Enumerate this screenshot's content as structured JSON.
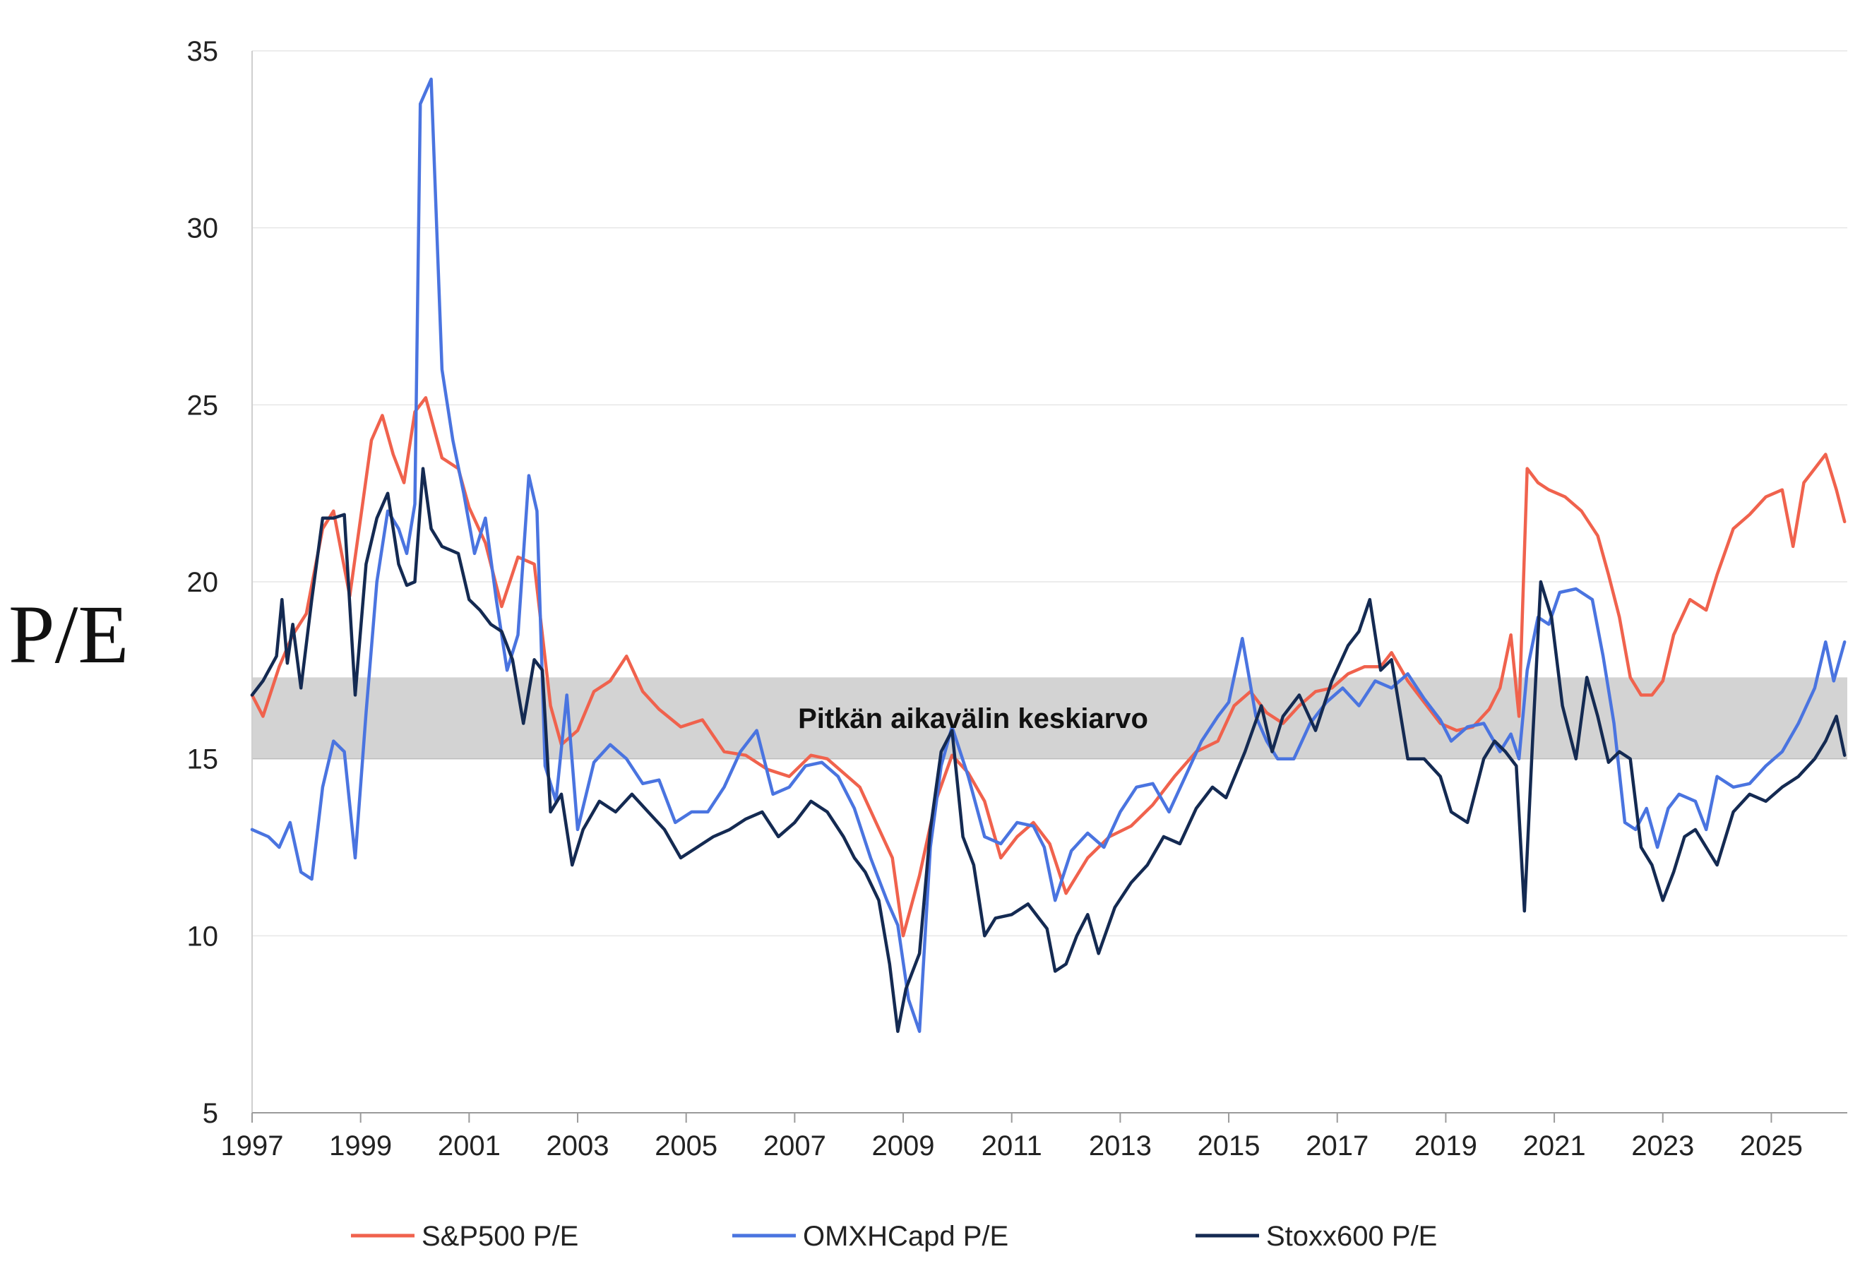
{
  "chart_data": {
    "type": "line",
    "title": "",
    "ylabel": "P/E",
    "xlabel": "",
    "xlim": [
      1997.0,
      2026.4
    ],
    "ylim": [
      5,
      35
    ],
    "y_ticks": [
      5,
      10,
      15,
      20,
      25,
      30,
      35
    ],
    "x_ticks": [
      1997,
      1999,
      2001,
      2003,
      2005,
      2007,
      2009,
      2011,
      2013,
      2015,
      2017,
      2019,
      2021,
      2023,
      2025
    ],
    "x_tick_labels": [
      "1997",
      "1999",
      "2001",
      "2003",
      "2005",
      "2007",
      "2009",
      "2011",
      "2013",
      "2015",
      "2017",
      "2019",
      "2021",
      "2023",
      "2025"
    ],
    "grid": "horizontal",
    "legend_position": "bottom",
    "band": {
      "label": "Pitkän aikavälin keskiarvo",
      "y_from": 15.0,
      "y_to": 17.3,
      "color": "#d3d3d3"
    },
    "series": [
      {
        "name": "S&P500 P/E",
        "color": "#f0624d",
        "x": [
          1997.0,
          1997.2,
          1997.5,
          1997.75,
          1998.0,
          1998.3,
          1998.5,
          1998.8,
          1999.0,
          1999.2,
          1999.4,
          1999.6,
          1999.8,
          2000.0,
          2000.2,
          2000.5,
          2000.8,
          2001.0,
          2001.3,
          2001.6,
          2001.9,
          2002.2,
          2002.5,
          2002.7,
          2003.0,
          2003.3,
          2003.6,
          2003.9,
          2004.2,
          2004.5,
          2004.9,
          2005.3,
          2005.7,
          2006.1,
          2006.5,
          2006.9,
          2007.3,
          2007.6,
          2007.9,
          2008.2,
          2008.5,
          2008.8,
          2009.0,
          2009.3,
          2009.6,
          2009.9,
          2010.2,
          2010.5,
          2010.8,
          2011.1,
          2011.4,
          2011.7,
          2012.0,
          2012.4,
          2012.8,
          2013.2,
          2013.6,
          2014.0,
          2014.4,
          2014.8,
          2015.1,
          2015.4,
          2015.7,
          2016.0,
          2016.3,
          2016.6,
          2016.9,
          2017.2,
          2017.5,
          2017.8,
          2018.0,
          2018.3,
          2018.6,
          2018.9,
          2019.2,
          2019.5,
          2019.8,
          2020.0,
          2020.2,
          2020.35,
          2020.5,
          2020.7,
          2020.9,
          2021.2,
          2021.5,
          2021.8,
          2022.0,
          2022.2,
          2022.4,
          2022.6,
          2022.8,
          2023.0,
          2023.2,
          2023.5,
          2023.8,
          2024.0,
          2024.3,
          2024.6,
          2024.9,
          2025.2,
          2025.4,
          2025.6,
          2025.8,
          2026.0,
          2026.2,
          2026.35
        ],
        "values": [
          16.8,
          16.2,
          17.6,
          18.5,
          19.1,
          21.5,
          22.0,
          19.6,
          21.8,
          24.0,
          24.7,
          23.6,
          22.8,
          24.8,
          25.2,
          23.5,
          23.2,
          22.1,
          21.1,
          19.3,
          20.7,
          20.5,
          16.5,
          15.4,
          15.8,
          16.9,
          17.2,
          17.9,
          16.9,
          16.4,
          15.9,
          16.1,
          15.2,
          15.1,
          14.7,
          14.5,
          15.1,
          15.0,
          14.6,
          14.2,
          13.2,
          12.2,
          10.0,
          11.7,
          13.8,
          15.1,
          14.6,
          13.8,
          12.2,
          12.8,
          13.2,
          12.6,
          11.2,
          12.2,
          12.8,
          13.1,
          13.7,
          14.5,
          15.2,
          15.5,
          16.5,
          16.9,
          16.3,
          16.0,
          16.5,
          16.9,
          17.0,
          17.4,
          17.6,
          17.6,
          18.0,
          17.2,
          16.6,
          16.0,
          15.8,
          15.9,
          16.4,
          17.0,
          18.5,
          16.2,
          23.2,
          22.8,
          22.6,
          22.4,
          22.0,
          21.3,
          20.2,
          19.0,
          17.3,
          16.8,
          16.8,
          17.2,
          18.5,
          19.5,
          19.2,
          20.2,
          21.5,
          21.9,
          22.4,
          22.6,
          21.0,
          22.8,
          23.2,
          23.6,
          22.6,
          21.7
        ]
      },
      {
        "name": "OMXHCapd P/E",
        "color": "#4a74e0",
        "x": [
          1997.0,
          1997.3,
          1997.5,
          1997.7,
          1997.9,
          1998.1,
          1998.3,
          1998.5,
          1998.7,
          1998.9,
          1999.1,
          1999.3,
          1999.5,
          1999.7,
          1999.85,
          2000.0,
          2000.1,
          2000.3,
          2000.5,
          2000.7,
          2000.9,
          2001.1,
          2001.3,
          2001.5,
          2001.7,
          2001.9,
          2002.1,
          2002.25,
          2002.4,
          2002.6,
          2002.8,
          2003.0,
          2003.3,
          2003.6,
          2003.9,
          2004.2,
          2004.5,
          2004.8,
          2005.1,
          2005.4,
          2005.7,
          2006.0,
          2006.3,
          2006.6,
          2006.9,
          2007.2,
          2007.5,
          2007.8,
          2008.1,
          2008.4,
          2008.7,
          2008.9,
          2009.1,
          2009.3,
          2009.5,
          2009.7,
          2009.9,
          2010.2,
          2010.5,
          2010.8,
          2011.1,
          2011.4,
          2011.6,
          2011.8,
          2012.1,
          2012.4,
          2012.7,
          2013.0,
          2013.3,
          2013.6,
          2013.9,
          2014.2,
          2014.5,
          2014.8,
          2015.0,
          2015.25,
          2015.5,
          2015.7,
          2015.9,
          2016.2,
          2016.5,
          2016.8,
          2017.1,
          2017.4,
          2017.7,
          2018.0,
          2018.3,
          2018.6,
          2018.9,
          2019.1,
          2019.4,
          2019.7,
          2020.0,
          2020.2,
          2020.35,
          2020.5,
          2020.7,
          2020.9,
          2021.1,
          2021.4,
          2021.7,
          2021.9,
          2022.1,
          2022.3,
          2022.5,
          2022.7,
          2022.9,
          2023.1,
          2023.3,
          2023.6,
          2023.8,
          2024.0,
          2024.3,
          2024.6,
          2024.9,
          2025.2,
          2025.5,
          2025.8,
          2026.0,
          2026.15,
          2026.35
        ],
        "values": [
          13.0,
          12.8,
          12.5,
          13.2,
          11.8,
          11.6,
          14.2,
          15.5,
          15.2,
          12.2,
          16.3,
          20.0,
          22.0,
          21.5,
          20.8,
          22.2,
          33.5,
          34.2,
          26.0,
          24.0,
          22.5,
          20.8,
          21.8,
          19.5,
          17.5,
          18.5,
          23.0,
          22.0,
          14.8,
          13.8,
          16.8,
          13.0,
          14.9,
          15.4,
          15.0,
          14.3,
          14.4,
          13.2,
          13.5,
          13.5,
          14.2,
          15.2,
          15.8,
          14.0,
          14.2,
          14.8,
          14.9,
          14.5,
          13.6,
          12.2,
          11.0,
          10.3,
          8.2,
          7.3,
          12.5,
          14.8,
          15.9,
          14.5,
          12.8,
          12.6,
          13.2,
          13.1,
          12.5,
          11.0,
          12.4,
          12.9,
          12.5,
          13.5,
          14.2,
          14.3,
          13.5,
          14.5,
          15.5,
          16.2,
          16.6,
          18.4,
          16.2,
          15.5,
          15.0,
          15.0,
          16.0,
          16.6,
          17.0,
          16.5,
          17.2,
          17.0,
          17.4,
          16.7,
          16.1,
          15.5,
          15.9,
          16.0,
          15.2,
          15.7,
          15.0,
          17.5,
          19.0,
          18.8,
          19.7,
          19.8,
          19.5,
          17.9,
          16.0,
          13.2,
          13.0,
          13.6,
          12.5,
          13.6,
          14.0,
          13.8,
          13.0,
          14.5,
          14.2,
          14.3,
          14.8,
          15.2,
          16.0,
          17.0,
          18.3,
          17.2,
          18.3
        ]
      },
      {
        "name": "Stoxx600 P/E",
        "color": "#142a52",
        "x": [
          1997.0,
          1997.2,
          1997.45,
          1997.55,
          1997.65,
          1997.75,
          1997.9,
          1998.1,
          1998.3,
          1998.5,
          1998.7,
          1998.9,
          1999.1,
          1999.3,
          1999.5,
          1999.7,
          1999.85,
          2000.0,
          2000.15,
          2000.3,
          2000.5,
          2000.8,
          2001.0,
          2001.2,
          2001.4,
          2001.6,
          2001.8,
          2002.0,
          2002.2,
          2002.35,
          2002.5,
          2002.7,
          2002.9,
          2003.1,
          2003.4,
          2003.7,
          2004.0,
          2004.3,
          2004.6,
          2004.9,
          2005.2,
          2005.5,
          2005.8,
          2006.1,
          2006.4,
          2006.7,
          2007.0,
          2007.3,
          2007.6,
          2007.9,
          2008.1,
          2008.3,
          2008.55,
          2008.75,
          2008.9,
          2009.05,
          2009.3,
          2009.5,
          2009.7,
          2009.9,
          2010.1,
          2010.3,
          2010.5,
          2010.7,
          2011.0,
          2011.3,
          2011.5,
          2011.65,
          2011.8,
          2012.0,
          2012.2,
          2012.4,
          2012.6,
          2012.9,
          2013.2,
          2013.5,
          2013.8,
          2014.1,
          2014.4,
          2014.7,
          2014.95,
          2015.3,
          2015.6,
          2015.8,
          2016.0,
          2016.3,
          2016.6,
          2016.9,
          2017.2,
          2017.4,
          2017.6,
          2017.8,
          2018.0,
          2018.3,
          2018.6,
          2018.9,
          2019.1,
          2019.4,
          2019.7,
          2019.9,
          2020.1,
          2020.3,
          2020.45,
          2020.6,
          2020.75,
          2020.95,
          2021.15,
          2021.4,
          2021.6,
          2021.8,
          2022.0,
          2022.2,
          2022.4,
          2022.6,
          2022.8,
          2023.0,
          2023.2,
          2023.4,
          2023.6,
          2023.8,
          2024.0,
          2024.3,
          2024.6,
          2024.9,
          2025.2,
          2025.5,
          2025.8,
          2026.0,
          2026.2,
          2026.35
        ],
        "values": [
          16.8,
          17.2,
          17.9,
          19.5,
          17.7,
          18.8,
          17.0,
          19.5,
          21.8,
          21.8,
          21.9,
          16.8,
          20.5,
          21.8,
          22.5,
          20.5,
          19.9,
          20.0,
          23.2,
          21.5,
          21.0,
          20.8,
          19.5,
          19.2,
          18.8,
          18.6,
          17.8,
          16.0,
          17.8,
          17.5,
          13.5,
          14.0,
          12.0,
          13.0,
          13.8,
          13.5,
          14.0,
          13.5,
          13.0,
          12.2,
          12.5,
          12.8,
          13.0,
          13.3,
          13.5,
          12.8,
          13.2,
          13.8,
          13.5,
          12.8,
          12.2,
          11.8,
          11.0,
          9.2,
          7.3,
          8.5,
          9.5,
          13.0,
          15.2,
          15.8,
          12.8,
          12.0,
          10.0,
          10.5,
          10.6,
          10.9,
          10.5,
          10.2,
          9.0,
          9.2,
          10.0,
          10.6,
          9.5,
          10.8,
          11.5,
          12.0,
          12.8,
          12.6,
          13.6,
          14.2,
          13.9,
          15.2,
          16.5,
          15.2,
          16.2,
          16.8,
          15.8,
          17.2,
          18.2,
          18.6,
          19.5,
          17.5,
          17.8,
          15.0,
          15.0,
          14.5,
          13.5,
          13.2,
          15.0,
          15.5,
          15.2,
          14.8,
          10.7,
          15.5,
          20.0,
          19.0,
          16.5,
          15.0,
          17.3,
          16.2,
          14.9,
          15.2,
          15.0,
          12.5,
          12.0,
          11.0,
          11.8,
          12.8,
          13.0,
          12.5,
          12.0,
          13.5,
          14.0,
          13.8,
          14.2,
          14.5,
          15.0,
          15.5,
          16.2,
          15.1
        ]
      }
    ]
  }
}
